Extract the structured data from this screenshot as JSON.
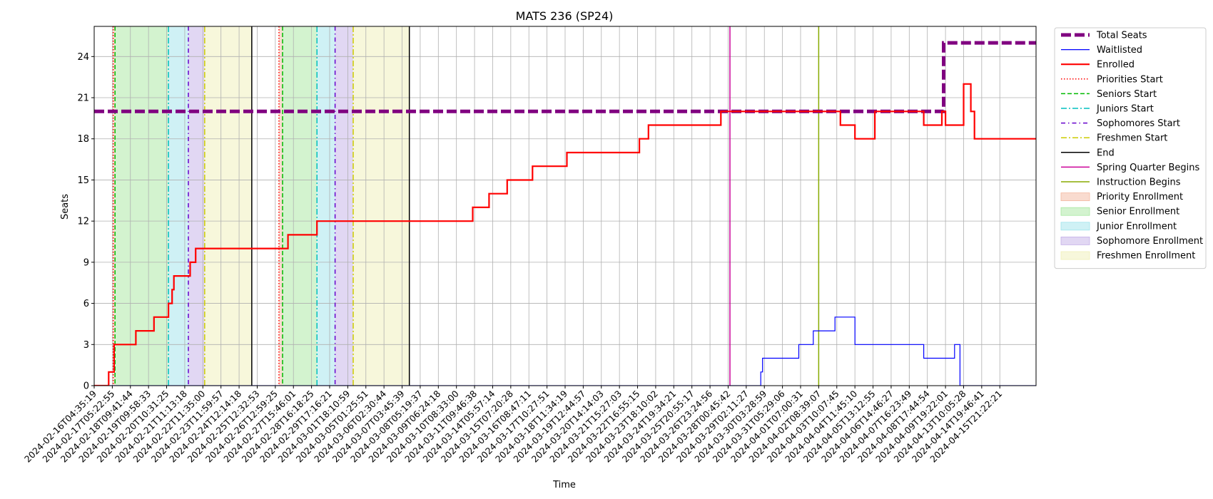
{
  "chart_data": {
    "type": "line",
    "title": "MATS 236 (SP24)",
    "xlabel": "Time",
    "ylabel": "Seats",
    "ylim": [
      0,
      26.2
    ],
    "yticks": [
      0,
      3,
      6,
      9,
      12,
      15,
      18,
      21,
      24
    ],
    "grid": true,
    "legend_placement": "outside-top-right",
    "x_ticks": [
      "2024-02-16T04:35:19",
      "2024-02-17T05:22:55",
      "2024-02-18T09:41:44",
      "2024-02-19T09:58:33",
      "2024-02-20T10:31:25",
      "2024-02-21T11:13:18",
      "2024-02-22T11:35:00",
      "2024-02-23T11:59:57",
      "2024-02-24T12:14:18",
      "2024-02-25T12:32:53",
      "2024-02-26T12:59:25",
      "2024-02-27T15:46:01",
      "2024-02-28T16:18:25",
      "2024-02-29T17:16:21",
      "2024-03-01T18:10:59",
      "2024-03-05T01:25:51",
      "2024-03-06T02:30:44",
      "2024-03-07T03:45:39",
      "2024-03-08T05:19:37",
      "2024-03-09T06:24:18",
      "2024-03-10T08:33:00",
      "2024-03-11T09:46:38",
      "2024-03-14T05:57:14",
      "2024-03-15T07:20:28",
      "2024-03-16T08:47:11",
      "2024-03-17T10:27:51",
      "2024-03-18T11:34:19",
      "2024-03-19T12:44:57",
      "2024-03-20T14:14:03",
      "2024-03-21T15:27:03",
      "2024-03-22T16:55:15",
      "2024-03-23T18:10:02",
      "2024-03-24T19:34:21",
      "2024-03-25T20:55:17",
      "2024-03-26T23:24:56",
      "2024-03-28T00:45:42",
      "2024-03-29T02:11:27",
      "2024-03-30T03:28:59",
      "2024-03-31T05:29:06",
      "2024-04-01T07:00:31",
      "2024-04-02T08:39:07",
      "2024-04-03T10:07:45",
      "2024-04-04T11:45:10",
      "2024-04-05T13:12:55",
      "2024-04-06T14:46:27",
      "2024-04-07T16:23:49",
      "2024-04-08T17:44:54",
      "2024-04-09T19:22:01",
      "2024-04-13T10:05:28",
      "2024-04-14T19:46:41",
      "2024-04-15T21:22:21"
    ],
    "x_range": [
      0,
      52
    ],
    "series": [
      {
        "name": "Total Seats",
        "color": "#800080",
        "style": "dashed-thick",
        "points": [
          [
            0,
            20
          ],
          [
            46.9,
            20
          ],
          [
            46.9,
            25
          ],
          [
            52,
            25
          ]
        ]
      },
      {
        "name": "Waitlisted",
        "color": "#0000ff",
        "style": "solid-thin",
        "points": [
          [
            0,
            0
          ],
          [
            36.8,
            0
          ],
          [
            36.8,
            1
          ],
          [
            36.9,
            1
          ],
          [
            36.9,
            2
          ],
          [
            38.9,
            2
          ],
          [
            38.9,
            3
          ],
          [
            39.7,
            3
          ],
          [
            39.7,
            4
          ],
          [
            40.9,
            4
          ],
          [
            40.9,
            5
          ],
          [
            42.0,
            5
          ],
          [
            42.0,
            3
          ],
          [
            45.8,
            3
          ],
          [
            45.8,
            2
          ],
          [
            47.5,
            2
          ],
          [
            47.5,
            3
          ],
          [
            47.8,
            3
          ],
          [
            47.8,
            0
          ],
          [
            52,
            0
          ]
        ]
      },
      {
        "name": "Enrolled",
        "color": "#ff0000",
        "style": "solid-thick",
        "points": [
          [
            0,
            0
          ],
          [
            0.8,
            0
          ],
          [
            0.8,
            1
          ],
          [
            1.1,
            1
          ],
          [
            1.1,
            3
          ],
          [
            2.3,
            3
          ],
          [
            2.3,
            4
          ],
          [
            3.3,
            4
          ],
          [
            3.3,
            5
          ],
          [
            4.1,
            5
          ],
          [
            4.1,
            6
          ],
          [
            4.3,
            6
          ],
          [
            4.3,
            7
          ],
          [
            4.4,
            7
          ],
          [
            4.4,
            8
          ],
          [
            5.3,
            8
          ],
          [
            5.3,
            9
          ],
          [
            5.6,
            9
          ],
          [
            5.6,
            10
          ],
          [
            10.7,
            10
          ],
          [
            10.7,
            11
          ],
          [
            12.3,
            11
          ],
          [
            12.3,
            12
          ],
          [
            20.9,
            12
          ],
          [
            20.9,
            13
          ],
          [
            21.8,
            13
          ],
          [
            21.8,
            14
          ],
          [
            22.8,
            14
          ],
          [
            22.8,
            15
          ],
          [
            24.2,
            15
          ],
          [
            24.2,
            16
          ],
          [
            26.1,
            16
          ],
          [
            26.1,
            17
          ],
          [
            30.1,
            17
          ],
          [
            30.1,
            18
          ],
          [
            30.6,
            18
          ],
          [
            30.6,
            19
          ],
          [
            34.6,
            19
          ],
          [
            34.6,
            20
          ],
          [
            41.2,
            20
          ],
          [
            41.2,
            19
          ],
          [
            42.0,
            19
          ],
          [
            42.0,
            18
          ],
          [
            43.1,
            18
          ],
          [
            43.1,
            20
          ],
          [
            45.8,
            20
          ],
          [
            45.8,
            19
          ],
          [
            46.8,
            19
          ],
          [
            46.8,
            20
          ],
          [
            47.0,
            20
          ],
          [
            47.0,
            19
          ],
          [
            48.0,
            19
          ],
          [
            48.0,
            22
          ],
          [
            48.4,
            22
          ],
          [
            48.4,
            20
          ],
          [
            48.6,
            20
          ],
          [
            48.6,
            18
          ],
          [
            52,
            18
          ]
        ]
      }
    ],
    "markers": [
      {
        "name": "Priorities Start",
        "color": "#ff0000",
        "style": "dotted",
        "x": [
          1.05,
          10.2
        ]
      },
      {
        "name": "Seniors Start",
        "color": "#00bb00",
        "style": "dashed",
        "x": [
          1.15,
          10.4
        ]
      },
      {
        "name": "Juniors Start",
        "color": "#00bfbf",
        "style": "dashdot",
        "x": [
          4.1,
          12.3
        ]
      },
      {
        "name": "Sophomores Start",
        "color": "#6600cc",
        "style": "dashdot-fine",
        "x": [
          5.2,
          13.3
        ]
      },
      {
        "name": "Freshmen Start",
        "color": "#cccc00",
        "style": "dashdot",
        "x": [
          6.1,
          14.3
        ]
      },
      {
        "name": "End",
        "color": "#000000",
        "style": "solid",
        "x": [
          8.7,
          17.4
        ]
      },
      {
        "name": "Spring Quarter Begins",
        "color": "#cc0099",
        "style": "solid",
        "x": [
          35.1
        ]
      },
      {
        "name": "Instruction Begins",
        "color": "#88aa00",
        "style": "solid",
        "x": [
          40.0
        ]
      }
    ],
    "spans": [
      {
        "name": "Priority Enrollment",
        "color": "#f4b8a0",
        "ranges": [
          [
            1.05,
            1.15
          ],
          [
            10.2,
            10.4
          ]
        ]
      },
      {
        "name": "Senior Enrollment",
        "color": "#a8e8a0",
        "ranges": [
          [
            1.15,
            4.1
          ],
          [
            10.4,
            12.3
          ]
        ]
      },
      {
        "name": "Junior Enrollment",
        "color": "#a0e4ec",
        "ranges": [
          [
            4.1,
            5.2
          ],
          [
            12.3,
            13.3
          ]
        ]
      },
      {
        "name": "Sophomore Enrollment",
        "color": "#c4b0e8",
        "ranges": [
          [
            5.2,
            6.1
          ],
          [
            13.3,
            14.3
          ]
        ]
      },
      {
        "name": "Freshmen Enrollment",
        "color": "#f0f0b8",
        "ranges": [
          [
            6.1,
            8.7
          ],
          [
            14.3,
            17.4
          ]
        ]
      }
    ],
    "legend": [
      {
        "label": "Total Seats",
        "kind": "line",
        "color": "#800080",
        "style": "dashed-thick"
      },
      {
        "label": "Waitlisted",
        "kind": "line",
        "color": "#0000ff",
        "style": "solid-thin"
      },
      {
        "label": "Enrolled",
        "kind": "line",
        "color": "#ff0000",
        "style": "solid-thick"
      },
      {
        "label": "Priorities Start",
        "kind": "line",
        "color": "#ff0000",
        "style": "dotted"
      },
      {
        "label": "Seniors Start",
        "kind": "line",
        "color": "#00bb00",
        "style": "dashed"
      },
      {
        "label": "Juniors Start",
        "kind": "line",
        "color": "#00bfbf",
        "style": "dashdot"
      },
      {
        "label": "Sophomores Start",
        "kind": "line",
        "color": "#6600cc",
        "style": "dashdot-fine"
      },
      {
        "label": "Freshmen Start",
        "kind": "line",
        "color": "#cccc00",
        "style": "dashdot"
      },
      {
        "label": "End",
        "kind": "line",
        "color": "#000000",
        "style": "solid"
      },
      {
        "label": "Spring Quarter Begins",
        "kind": "line",
        "color": "#cc0099",
        "style": "solid"
      },
      {
        "label": "Instruction Begins",
        "kind": "line",
        "color": "#88aa00",
        "style": "solid"
      },
      {
        "label": "Priority Enrollment",
        "kind": "patch",
        "color": "#f4b8a0"
      },
      {
        "label": "Senior Enrollment",
        "kind": "patch",
        "color": "#a8e8a0"
      },
      {
        "label": "Junior Enrollment",
        "kind": "patch",
        "color": "#a0e4ec"
      },
      {
        "label": "Sophomore Enrollment",
        "kind": "patch",
        "color": "#c4b0e8"
      },
      {
        "label": "Freshmen Enrollment",
        "kind": "patch",
        "color": "#f0f0b8"
      }
    ]
  }
}
